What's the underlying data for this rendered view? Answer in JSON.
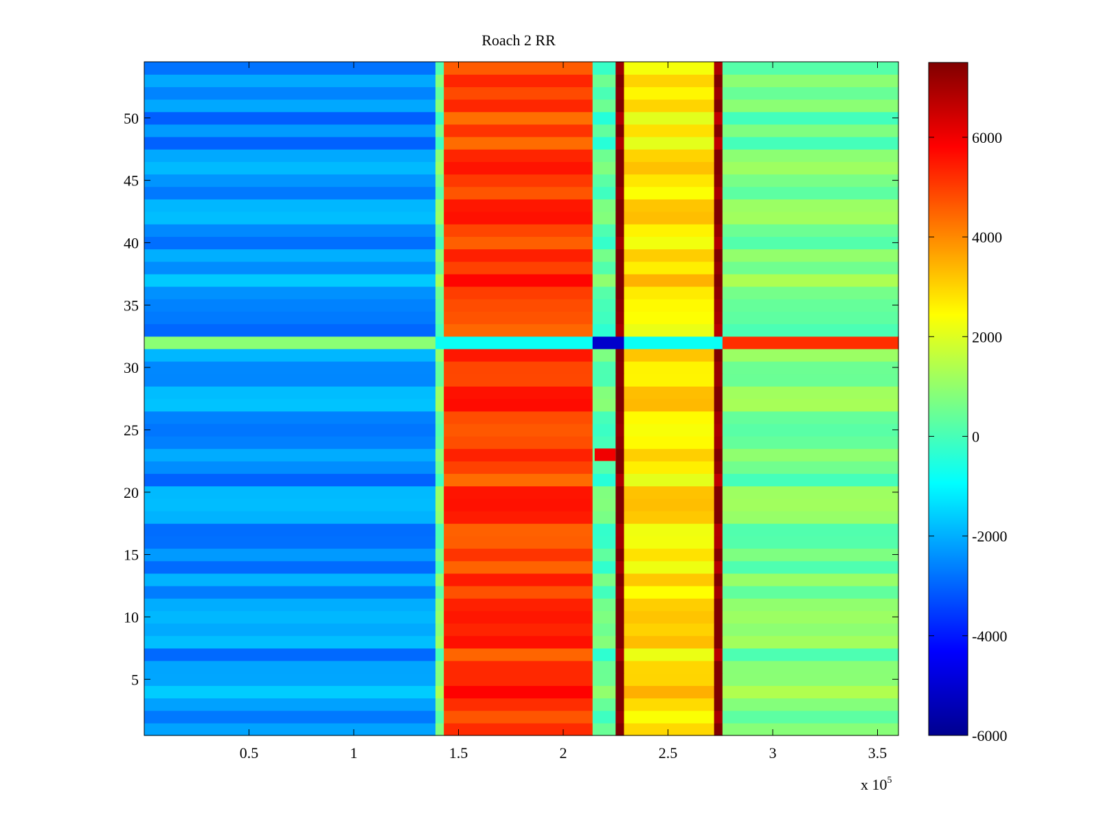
{
  "chart_data": {
    "type": "heatmap",
    "title": "Roach 2 RR",
    "xlabel": "",
    "ylabel": "",
    "x_multiplier_label": "x 10",
    "x_multiplier_exponent": "5",
    "xlim": [
      0,
      3.6
    ],
    "ylim": [
      0.5,
      54.5
    ],
    "x_ticks": [
      0.5,
      1,
      1.5,
      2,
      2.5,
      3,
      3.5
    ],
    "x_tick_labels": [
      "0.5",
      "1",
      "1.5",
      "2",
      "2.5",
      "3",
      "3.5"
    ],
    "y_ticks": [
      5,
      10,
      15,
      20,
      25,
      30,
      35,
      40,
      45,
      50
    ],
    "y_tick_labels": [
      "5",
      "10",
      "15",
      "20",
      "25",
      "30",
      "35",
      "40",
      "45",
      "50"
    ],
    "rows": 54,
    "colorbar": {
      "colormap": "jet",
      "clim": [
        -6000,
        7500
      ],
      "ticks": [
        -6000,
        -4000,
        -2000,
        0,
        2000,
        4000,
        6000
      ],
      "tick_labels": [
        "-6000",
        "-4000",
        "-2000",
        "0",
        "2000",
        "4000",
        "6000"
      ]
    },
    "column_segments": [
      {
        "x_start": 0.0,
        "x_end": 1.39,
        "level": -2400
      },
      {
        "x_start": 1.39,
        "x_end": 1.43,
        "level": 500
      },
      {
        "x_start": 1.43,
        "x_end": 2.14,
        "level": 5000
      },
      {
        "x_start": 2.14,
        "x_end": 2.25,
        "level": 200
      },
      {
        "x_start": 2.25,
        "x_end": 2.29,
        "level": 7500
      },
      {
        "x_start": 2.29,
        "x_end": 2.72,
        "level": 2700
      },
      {
        "x_start": 2.72,
        "x_end": 2.76,
        "level": 7300
      },
      {
        "x_start": 2.76,
        "x_end": 3.6,
        "level": 600
      }
    ],
    "notes_visible": {
      "row_32_band": "row 32 differs from neighbours across the whole x range",
      "row_23_block": "high-value block near x 2.15-2.25 on row 23"
    }
  }
}
